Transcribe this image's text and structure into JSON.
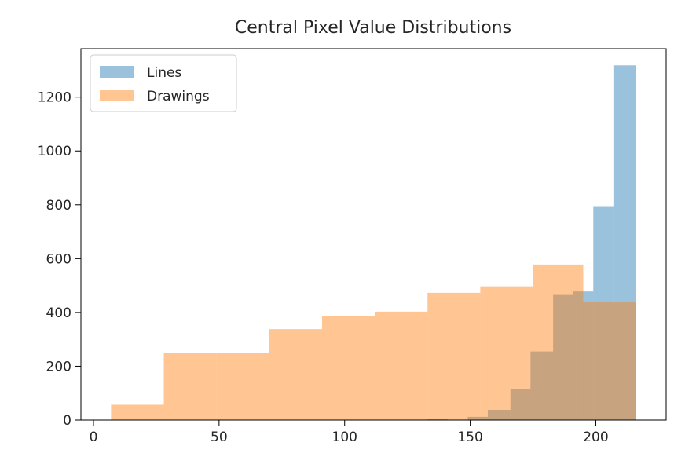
{
  "chart_data": {
    "type": "histogram",
    "title": "Central Pixel Value Distributions",
    "xlabel": "",
    "ylabel": "",
    "xlim": [
      -5,
      228
    ],
    "ylim": [
      0,
      1380
    ],
    "xticks": [
      0,
      50,
      100,
      150,
      200
    ],
    "yticks": [
      0,
      200,
      400,
      600,
      800,
      1000,
      1200
    ],
    "grid": false,
    "legend_position": "upper left",
    "series": [
      {
        "name": "Lines",
        "color": "#1f77b4",
        "alpha": 0.45,
        "bins": [
          {
            "x0": 8,
            "x1": 29,
            "value": 0
          },
          {
            "x0": 29,
            "x1": 69,
            "value": 0
          },
          {
            "x0": 69,
            "x1": 133,
            "value": 0
          },
          {
            "x0": 133,
            "x1": 141,
            "value": 5
          },
          {
            "x0": 141,
            "x1": 149,
            "value": 0
          },
          {
            "x0": 149,
            "x1": 157,
            "value": 12
          },
          {
            "x0": 157,
            "x1": 166,
            "value": 38
          },
          {
            "x0": 166,
            "x1": 174,
            "value": 115
          },
          {
            "x0": 174,
            "x1": 183,
            "value": 255
          },
          {
            "x0": 183,
            "x1": 191,
            "value": 465
          },
          {
            "x0": 191,
            "x1": 199,
            "value": 478
          },
          {
            "x0": 199,
            "x1": 207,
            "value": 795
          },
          {
            "x0": 207,
            "x1": 216,
            "value": 1318
          }
        ]
      },
      {
        "name": "Drawings",
        "color": "#ff7f0e",
        "alpha": 0.45,
        "bins": [
          {
            "x0": 7,
            "x1": 28,
            "value": 57
          },
          {
            "x0": 28,
            "x1": 49,
            "value": 248
          },
          {
            "x0": 49,
            "x1": 70,
            "value": 248
          },
          {
            "x0": 70,
            "x1": 91,
            "value": 338
          },
          {
            "x0": 91,
            "x1": 112,
            "value": 388
          },
          {
            "x0": 112,
            "x1": 133,
            "value": 403
          },
          {
            "x0": 133,
            "x1": 154,
            "value": 473
          },
          {
            "x0": 154,
            "x1": 175,
            "value": 497
          },
          {
            "x0": 175,
            "x1": 195,
            "value": 578
          },
          {
            "x0": 195,
            "x1": 216,
            "value": 440
          }
        ]
      }
    ]
  }
}
